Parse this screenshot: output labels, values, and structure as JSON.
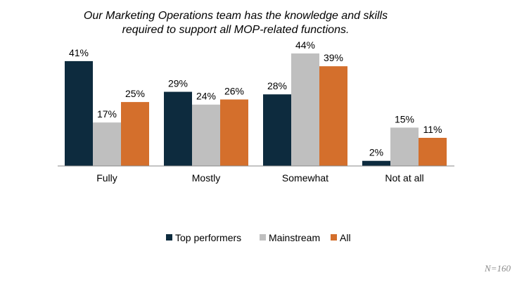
{
  "chart_data": {
    "type": "bar",
    "title_lines": [
      "Our Marketing Operations team has the knowledge and skills",
      "required to support all MOP-related functions."
    ],
    "categories": [
      "Fully",
      "Mostly",
      "Somewhat",
      "Not at all"
    ],
    "series": [
      {
        "name": "Top performers",
        "color": "#0d2b3e",
        "values": [
          41,
          29,
          28,
          2
        ],
        "labels": [
          "41%",
          "29%",
          "28%",
          "2%"
        ]
      },
      {
        "name": "Mainstream",
        "color": "#bfbfbf",
        "values": [
          17,
          24,
          44,
          15
        ],
        "labels": [
          "17%",
          "24%",
          "44%",
          "15%"
        ]
      },
      {
        "name": "All",
        "color": "#d46f2c",
        "values": [
          25,
          26,
          39,
          11
        ],
        "labels": [
          "25%",
          "26%",
          "39%",
          "11%"
        ]
      }
    ],
    "ylim": [
      0,
      44
    ],
    "grid": false,
    "legend_position": "bottom"
  },
  "footnote": "N=160"
}
